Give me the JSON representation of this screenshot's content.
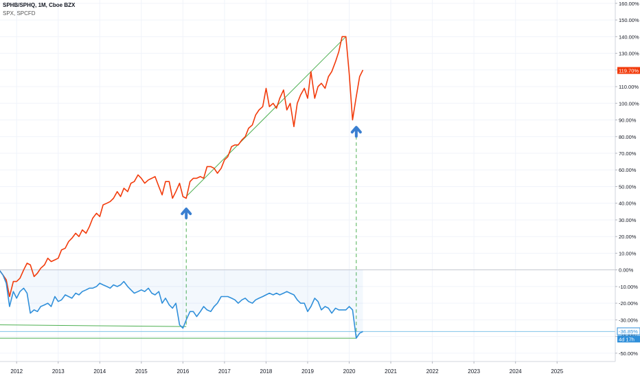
{
  "header": {
    "title": "SPHB/SPHQ, 1M, Cboe BZX",
    "subtitle": "SPX, SPCFD"
  },
  "chart_data": {
    "type": "line",
    "y_axis": {
      "position": "right",
      "min": -55,
      "max": 162,
      "tick_labels": [
        "160.00%",
        "150.00%",
        "140.00%",
        "130.00%",
        "120.00%",
        "110.00%",
        "100.00%",
        "90.00%",
        "80.00%",
        "70.00%",
        "60.00%",
        "50.00%",
        "40.00%",
        "30.00%",
        "20.00%",
        "10.00%",
        "0.00%",
        "-10.00%",
        "-20.00%",
        "-30.00%",
        "-40.00%",
        "-50.00%"
      ],
      "tick_values": [
        160,
        150,
        140,
        130,
        120,
        110,
        100,
        90,
        80,
        70,
        60,
        50,
        40,
        30,
        20,
        10,
        0,
        -10,
        -20,
        -30,
        -40,
        -50
      ]
    },
    "x_axis": {
      "min": 2011.6,
      "max": 2026.4,
      "tick_labels": [
        "2012",
        "2013",
        "2014",
        "2015",
        "2016",
        "2017",
        "2018",
        "2019",
        "2020",
        "2021",
        "2022",
        "2023",
        "2024",
        "2025"
      ],
      "tick_values": [
        2012,
        2013,
        2014,
        2015,
        2016,
        2017,
        2018,
        2019,
        2020,
        2021,
        2022,
        2023,
        2024,
        2025
      ]
    },
    "grid": true,
    "series": [
      {
        "color": "#f23a0a",
        "x": [
          2011.58,
          2011.67,
          2011.75,
          2011.83,
          2011.92,
          2012.0,
          2012.08,
          2012.17,
          2012.25,
          2012.33,
          2012.42,
          2012.5,
          2012.58,
          2012.67,
          2012.75,
          2012.83,
          2012.92,
          2013.0,
          2013.08,
          2013.17,
          2013.25,
          2013.33,
          2013.42,
          2013.5,
          2013.58,
          2013.67,
          2013.75,
          2013.83,
          2013.92,
          2014.0,
          2014.08,
          2014.17,
          2014.25,
          2014.33,
          2014.42,
          2014.5,
          2014.58,
          2014.67,
          2014.75,
          2014.83,
          2014.92,
          2015.0,
          2015.08,
          2015.17,
          2015.25,
          2015.33,
          2015.42,
          2015.5,
          2015.58,
          2015.67,
          2015.75,
          2015.83,
          2015.92,
          2016.0,
          2016.08,
          2016.17,
          2016.25,
          2016.33,
          2016.42,
          2016.5,
          2016.58,
          2016.67,
          2016.75,
          2016.83,
          2016.92,
          2017.0,
          2017.08,
          2017.17,
          2017.25,
          2017.33,
          2017.42,
          2017.5,
          2017.58,
          2017.67,
          2017.75,
          2017.83,
          2017.92,
          2018.0,
          2018.08,
          2018.17,
          2018.25,
          2018.33,
          2018.42,
          2018.5,
          2018.58,
          2018.67,
          2018.75,
          2018.83,
          2018.92,
          2019.0,
          2019.08,
          2019.17,
          2019.25,
          2019.33,
          2019.42,
          2019.5,
          2019.58,
          2019.67,
          2019.75,
          2019.83,
          2019.92,
          2020.0,
          2020.08,
          2020.17,
          2020.25,
          2020.33
        ],
        "y": [
          0,
          -3,
          -6,
          -16,
          -7,
          -7,
          -5,
          0,
          4,
          3,
          -4,
          -2,
          1,
          3,
          7,
          5,
          6,
          7,
          12,
          13,
          17,
          19,
          22,
          20,
          24,
          22,
          26,
          31,
          34,
          32,
          39,
          40,
          41,
          43,
          47,
          44,
          49,
          47,
          52,
          53,
          57,
          55,
          52,
          54,
          55,
          56,
          50,
          45,
          53,
          53,
          43,
          47,
          52,
          44,
          43,
          53,
          55,
          55,
          56,
          55,
          62,
          62,
          61,
          58,
          61,
          66,
          68,
          74,
          75,
          75,
          78,
          80,
          85,
          87,
          93,
          96,
          98,
          109,
          98,
          100,
          97,
          103,
          108,
          96,
          100,
          86,
          100,
          105,
          109,
          103,
          119,
          103,
          110,
          112,
          109,
          116,
          119,
          125,
          131,
          140,
          140,
          118,
          90,
          104,
          116,
          120
        ]
      },
      {
        "color": "#2f8fda",
        "x": [
          2011.58,
          2011.67,
          2011.75,
          2011.83,
          2011.92,
          2012.0,
          2012.08,
          2012.17,
          2012.25,
          2012.33,
          2012.42,
          2012.5,
          2012.58,
          2012.67,
          2012.75,
          2012.83,
          2012.92,
          2013.0,
          2013.08,
          2013.17,
          2013.25,
          2013.33,
          2013.42,
          2013.5,
          2013.58,
          2013.67,
          2013.75,
          2013.83,
          2013.92,
          2014.0,
          2014.08,
          2014.17,
          2014.25,
          2014.33,
          2014.42,
          2014.5,
          2014.58,
          2014.67,
          2014.75,
          2014.83,
          2014.92,
          2015.0,
          2015.08,
          2015.17,
          2015.25,
          2015.33,
          2015.42,
          2015.5,
          2015.58,
          2015.67,
          2015.75,
          2015.83,
          2015.92,
          2016.0,
          2016.08,
          2016.17,
          2016.25,
          2016.33,
          2016.42,
          2016.5,
          2016.58,
          2016.67,
          2016.75,
          2016.83,
          2016.92,
          2017.0,
          2017.08,
          2017.17,
          2017.25,
          2017.33,
          2017.42,
          2017.5,
          2017.58,
          2017.67,
          2017.75,
          2017.83,
          2017.92,
          2018.0,
          2018.08,
          2018.17,
          2018.25,
          2018.33,
          2018.42,
          2018.5,
          2018.58,
          2018.67,
          2018.75,
          2018.83,
          2018.92,
          2019.0,
          2019.08,
          2019.17,
          2019.25,
          2019.33,
          2019.42,
          2019.5,
          2019.58,
          2019.67,
          2019.75,
          2019.83,
          2019.92,
          2020.0,
          2020.08,
          2020.17,
          2020.25,
          2020.33
        ],
        "y": [
          0,
          -3,
          -8,
          -22,
          -13,
          -17,
          -13,
          -11,
          -14,
          -26,
          -24,
          -25,
          -22,
          -21,
          -20,
          -22,
          -16,
          -19,
          -18,
          -15,
          -16,
          -17,
          -14,
          -15,
          -13,
          -12,
          -11,
          -11,
          -10,
          -8,
          -9,
          -10,
          -11,
          -9,
          -10,
          -9,
          -7,
          -10,
          -12,
          -14,
          -13,
          -12,
          -13,
          -11,
          -14,
          -15,
          -13,
          -20,
          -17,
          -21,
          -23,
          -20,
          -33,
          -35,
          -30,
          -25,
          -25,
          -28,
          -25,
          -22,
          -24,
          -25,
          -22,
          -20,
          -16,
          -16,
          -16,
          -17,
          -18,
          -20,
          -18,
          -17,
          -19,
          -20,
          -18,
          -17,
          -16,
          -15,
          -14,
          -15,
          -14,
          -15,
          -14,
          -13,
          -14,
          -15,
          -18,
          -20,
          -20,
          -25,
          -22,
          -17,
          -19,
          -24,
          -22,
          -23,
          -26,
          -23,
          -24,
          -24,
          -24,
          -22,
          -24,
          -41,
          -38,
          -37
        ]
      }
    ],
    "annotations": {
      "green_lines": [
        {
          "x": [
            2016.08,
            2019.92
          ],
          "y": [
            44,
            140
          ]
        },
        {
          "x": [
            2011.58,
            2016.08
          ],
          "y": [
            -33,
            -34
          ]
        },
        {
          "x": [
            2011.58,
            2020.17
          ],
          "y": [
            -41,
            -41
          ]
        }
      ],
      "dashed_lines": [
        {
          "x": 2016.08,
          "y": [
            36,
            -34
          ]
        },
        {
          "x": 2020.17,
          "y": [
            84,
            -41
          ]
        }
      ],
      "arrows": [
        {
          "x": 2016.08,
          "y": 37
        },
        {
          "x": 2020.17,
          "y": 86
        }
      ],
      "h_line": -37,
      "value_labels": [
        {
          "text": "119.70%",
          "y": 119.7,
          "bg": "#f23a0a",
          "fg": "#ffffff"
        },
        {
          "text": "-36.85%",
          "y": -36.85,
          "bg": "#ffffff",
          "fg": "#2f8fda",
          "border": "#2f8fda"
        },
        {
          "text": "4d 17h",
          "y": -41.5,
          "bg": "#2f8fda",
          "fg": "#ffffff"
        }
      ]
    }
  }
}
